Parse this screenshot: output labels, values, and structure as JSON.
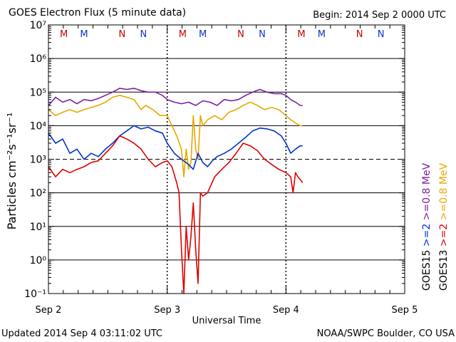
{
  "header": {
    "title": "GOES Electron Flux (5 minute data)",
    "begin": "Begin: 2014 Sep 2 0000 UTC"
  },
  "footer": {
    "updated": "Updated 2014 Sep  4 03:11:02 UTC",
    "credit": "NOAA/SWPC Boulder, CO USA"
  },
  "colors": {
    "goes15_high": "#7a1fa2",
    "goes13_high": "#e6a800",
    "goes15_low": "#0033cc",
    "goes13_low": "#e00000",
    "marker_m": "#cc0000",
    "marker_n_red": "#cc0000",
    "marker_blue": "#1133cc"
  },
  "chart_data": {
    "type": "line",
    "title": "GOES Electron Flux (5 minute data)",
    "xlabel": "Universal Time",
    "ylabel": "Particles cm⁻²s⁻¹sr⁻¹",
    "yscale": "log",
    "ylim_exp": [
      -1,
      7
    ],
    "ytick_exponents": [
      -1,
      0,
      1,
      2,
      3,
      4,
      5,
      6,
      7
    ],
    "threshold_exp": 3,
    "xlim_days": [
      0,
      3
    ],
    "xticks": [
      "Sep 2",
      "Sep 3",
      "Sep 4",
      "Sep 5"
    ],
    "grid": true,
    "legend": {
      "placement": "right",
      "groups": [
        {
          "sat": "GOES15",
          "entries": [
            {
              "label": ">=2",
              "color": "#0033cc"
            },
            {
              "label": ">=0.8 MeV",
              "color": "#7a1fa2"
            }
          ]
        },
        {
          "sat": "GOES13",
          "entries": [
            {
              "label": ">=2",
              "color": "#e00000"
            },
            {
              "label": ">=0.8 MeV",
              "color": "#e6a800"
            }
          ]
        }
      ]
    },
    "markers": [
      {
        "day": 0.13,
        "label": "M",
        "color": "#cc0000"
      },
      {
        "day": 0.3,
        "label": "M",
        "color": "#1133cc"
      },
      {
        "day": 0.62,
        "label": "N",
        "color": "#cc0000"
      },
      {
        "day": 0.8,
        "label": "N",
        "color": "#1133cc"
      },
      {
        "day": 1.13,
        "label": "M",
        "color": "#cc0000"
      },
      {
        "day": 1.3,
        "label": "M",
        "color": "#1133cc"
      },
      {
        "day": 1.62,
        "label": "N",
        "color": "#cc0000"
      },
      {
        "day": 1.8,
        "label": "N",
        "color": "#1133cc"
      },
      {
        "day": 2.13,
        "label": "M",
        "color": "#cc0000"
      },
      {
        "day": 2.3,
        "label": "M",
        "color": "#1133cc"
      },
      {
        "day": 2.62,
        "label": "N",
        "color": "#cc0000"
      },
      {
        "day": 2.8,
        "label": "N",
        "color": "#1133cc"
      }
    ],
    "series": [
      {
        "name": "GOES15 >=0.8 MeV",
        "color": "#7a1fa2",
        "x": [
          0.0,
          0.06,
          0.12,
          0.18,
          0.24,
          0.3,
          0.36,
          0.42,
          0.48,
          0.54,
          0.6,
          0.66,
          0.72,
          0.78,
          0.84,
          0.9,
          0.96,
          1.0,
          1.06,
          1.12,
          1.18,
          1.24,
          1.3,
          1.36,
          1.42,
          1.48,
          1.54,
          1.6,
          1.66,
          1.72,
          1.78,
          1.84,
          1.9,
          1.96,
          2.0,
          2.04,
          2.08,
          2.12,
          2.14
        ],
        "y": [
          40000,
          70000,
          50000,
          60000,
          45000,
          60000,
          55000,
          65000,
          80000,
          100000,
          130000,
          120000,
          130000,
          110000,
          100000,
          100000,
          80000,
          60000,
          50000,
          45000,
          50000,
          40000,
          55000,
          50000,
          40000,
          60000,
          55000,
          60000,
          80000,
          100000,
          120000,
          100000,
          90000,
          90000,
          80000,
          60000,
          50000,
          40000,
          40000
        ]
      },
      {
        "name": "GOES13 >=0.8 MeV",
        "color": "#e6a800",
        "x": [
          0.0,
          0.06,
          0.12,
          0.18,
          0.24,
          0.3,
          0.36,
          0.42,
          0.48,
          0.54,
          0.6,
          0.66,
          0.72,
          0.78,
          0.82,
          0.88,
          0.94,
          1.0,
          1.04,
          1.08,
          1.12,
          1.14,
          1.16,
          1.18,
          1.2,
          1.22,
          1.24,
          1.26,
          1.28,
          1.3,
          1.34,
          1.4,
          1.46,
          1.52,
          1.58,
          1.64,
          1.7,
          1.76,
          1.82,
          1.88,
          1.94,
          2.0,
          2.04,
          2.08,
          2.12,
          2.14
        ],
        "y": [
          30000,
          20000,
          25000,
          30000,
          25000,
          30000,
          35000,
          40000,
          50000,
          70000,
          80000,
          70000,
          60000,
          30000,
          40000,
          30000,
          20000,
          20000,
          10000,
          5000,
          2000,
          300,
          2000,
          500,
          800,
          20000,
          2000,
          1000,
          20000,
          10000,
          15000,
          20000,
          15000,
          25000,
          30000,
          40000,
          50000,
          40000,
          30000,
          35000,
          30000,
          20000,
          15000,
          12000,
          10000,
          10000
        ]
      },
      {
        "name": "GOES15 >=2 MeV",
        "color": "#0033cc",
        "x": [
          0.0,
          0.06,
          0.12,
          0.18,
          0.24,
          0.3,
          0.36,
          0.42,
          0.48,
          0.54,
          0.6,
          0.66,
          0.72,
          0.78,
          0.84,
          0.9,
          0.96,
          1.0,
          1.06,
          1.12,
          1.18,
          1.22,
          1.26,
          1.3,
          1.34,
          1.38,
          1.42,
          1.48,
          1.54,
          1.6,
          1.66,
          1.72,
          1.78,
          1.84,
          1.9,
          1.96,
          2.0,
          2.04,
          2.08,
          2.12,
          2.14
        ],
        "y": [
          6000,
          3000,
          4000,
          1500,
          2000,
          1000,
          1500,
          1200,
          2000,
          3000,
          5000,
          7000,
          10000,
          8000,
          9000,
          7000,
          6000,
          3000,
          1500,
          1000,
          700,
          500,
          1500,
          800,
          600,
          900,
          1200,
          1500,
          2000,
          3000,
          4500,
          7000,
          8500,
          8000,
          7000,
          5000,
          3000,
          1500,
          2000,
          2500,
          2500
        ]
      },
      {
        "name": "GOES13 >=2 MeV",
        "color": "#e00000",
        "x": [
          0.0,
          0.06,
          0.12,
          0.18,
          0.24,
          0.3,
          0.36,
          0.42,
          0.48,
          0.54,
          0.6,
          0.66,
          0.72,
          0.78,
          0.84,
          0.9,
          0.96,
          1.0,
          1.04,
          1.08,
          1.1,
          1.12,
          1.14,
          1.16,
          1.18,
          1.2,
          1.22,
          1.24,
          1.26,
          1.28,
          1.3,
          1.34,
          1.4,
          1.46,
          1.52,
          1.58,
          1.64,
          1.7,
          1.76,
          1.82,
          1.88,
          1.94,
          2.0,
          2.04,
          2.06,
          2.08,
          2.1,
          2.12,
          2.14
        ],
        "y": [
          600,
          300,
          500,
          400,
          500,
          600,
          800,
          900,
          1500,
          2500,
          5000,
          4000,
          3000,
          2000,
          1000,
          600,
          800,
          900,
          600,
          200,
          100,
          2,
          0.1,
          10,
          1,
          5,
          50,
          2,
          0.2,
          100,
          80,
          100,
          300,
          500,
          800,
          1500,
          3000,
          2500,
          1800,
          1000,
          700,
          500,
          400,
          300,
          100,
          400,
          300,
          250,
          200
        ]
      }
    ]
  }
}
